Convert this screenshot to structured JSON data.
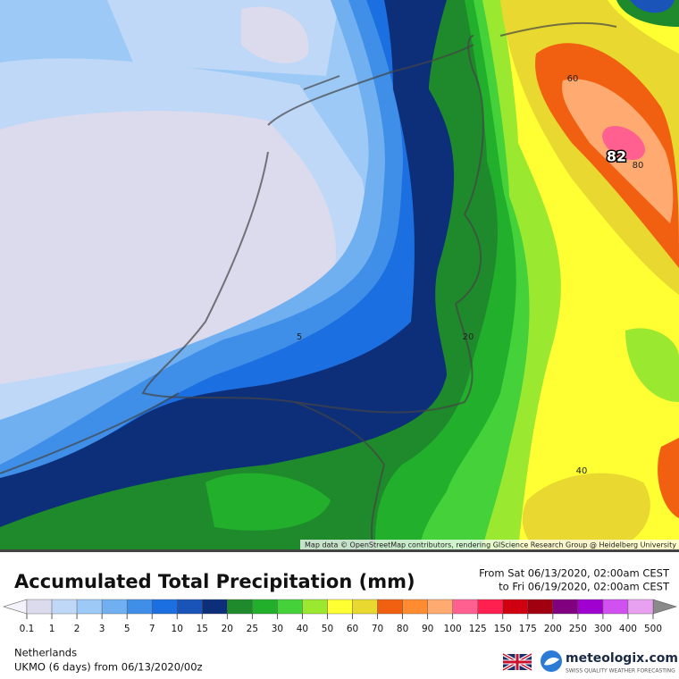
{
  "map": {
    "contour_labels": [
      60,
      82,
      80,
      5,
      20,
      40
    ],
    "attribution": "Map data © OpenStreetMap contributors, rendering GIScience Research Group @ Heidelberg University"
  },
  "legend": {
    "title": "Accumulated Total Precipitation (mm)",
    "period_from": "From Sat 06/13/2020, 02:00am CEST",
    "period_to": "to Fri 06/19/2020, 02:00am CEST",
    "ticks": [
      0.1,
      1,
      2,
      3,
      5,
      7,
      10,
      15,
      20,
      25,
      30,
      40,
      50,
      60,
      70,
      80,
      90,
      100,
      125,
      150,
      175,
      200,
      250,
      300,
      400,
      500
    ],
    "colors": [
      "#dcdaed",
      "#bfd8f7",
      "#9dc9f6",
      "#70b0f0",
      "#3f8fe8",
      "#1c6fe0",
      "#1a54b8",
      "#0d2f7a",
      "#1f8a2c",
      "#22b02c",
      "#45d13a",
      "#9ae830",
      "#ffff33",
      "#e8d830",
      "#f06010",
      "#ff8c30",
      "#ffaa70",
      "#ff6090",
      "#ff2050",
      "#d00010",
      "#a00010",
      "#800080",
      "#a000d0",
      "#d050f0",
      "#e8a0f0"
    ]
  },
  "footer": {
    "region": "Netherlands",
    "model": "UKMO (6 days) from 06/13/2020/00z",
    "brand": "meteologix.com",
    "tagline": "SWISS QUALITY WEATHER FORECASTING"
  }
}
